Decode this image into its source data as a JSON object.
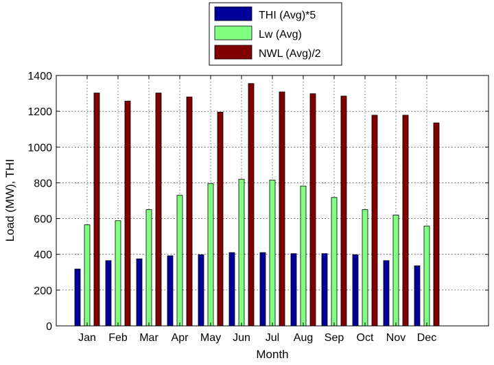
{
  "chart_data": {
    "type": "bar",
    "xlabel": "Month",
    "ylabel": "Load (MW), THI",
    "ylim": [
      0,
      1400
    ],
    "yticks": [
      0,
      200,
      400,
      600,
      800,
      1000,
      1200,
      1400
    ],
    "grid": true,
    "legend_position": "top-center",
    "categories": [
      "Jan",
      "Feb",
      "Mar",
      "Apr",
      "May",
      "Jun",
      "Jul",
      "Aug",
      "Sep",
      "Oct",
      "Nov",
      "Dec"
    ],
    "series": [
      {
        "name": "THI (Avg)*5",
        "color": "#000099",
        "values": [
          318,
          365,
          375,
          392,
          398,
          410,
          410,
          404,
          404,
          398,
          365,
          336
        ]
      },
      {
        "name": "Lw (Avg)",
        "color": "#80ff80",
        "values": [
          565,
          588,
          650,
          730,
          795,
          820,
          815,
          782,
          718,
          650,
          620,
          558
        ]
      },
      {
        "name": "NWL (Avg)/2",
        "color": "#800000",
        "values": [
          1302,
          1257,
          1302,
          1280,
          1195,
          1355,
          1308,
          1298,
          1285,
          1178,
          1178,
          1135
        ]
      }
    ]
  }
}
